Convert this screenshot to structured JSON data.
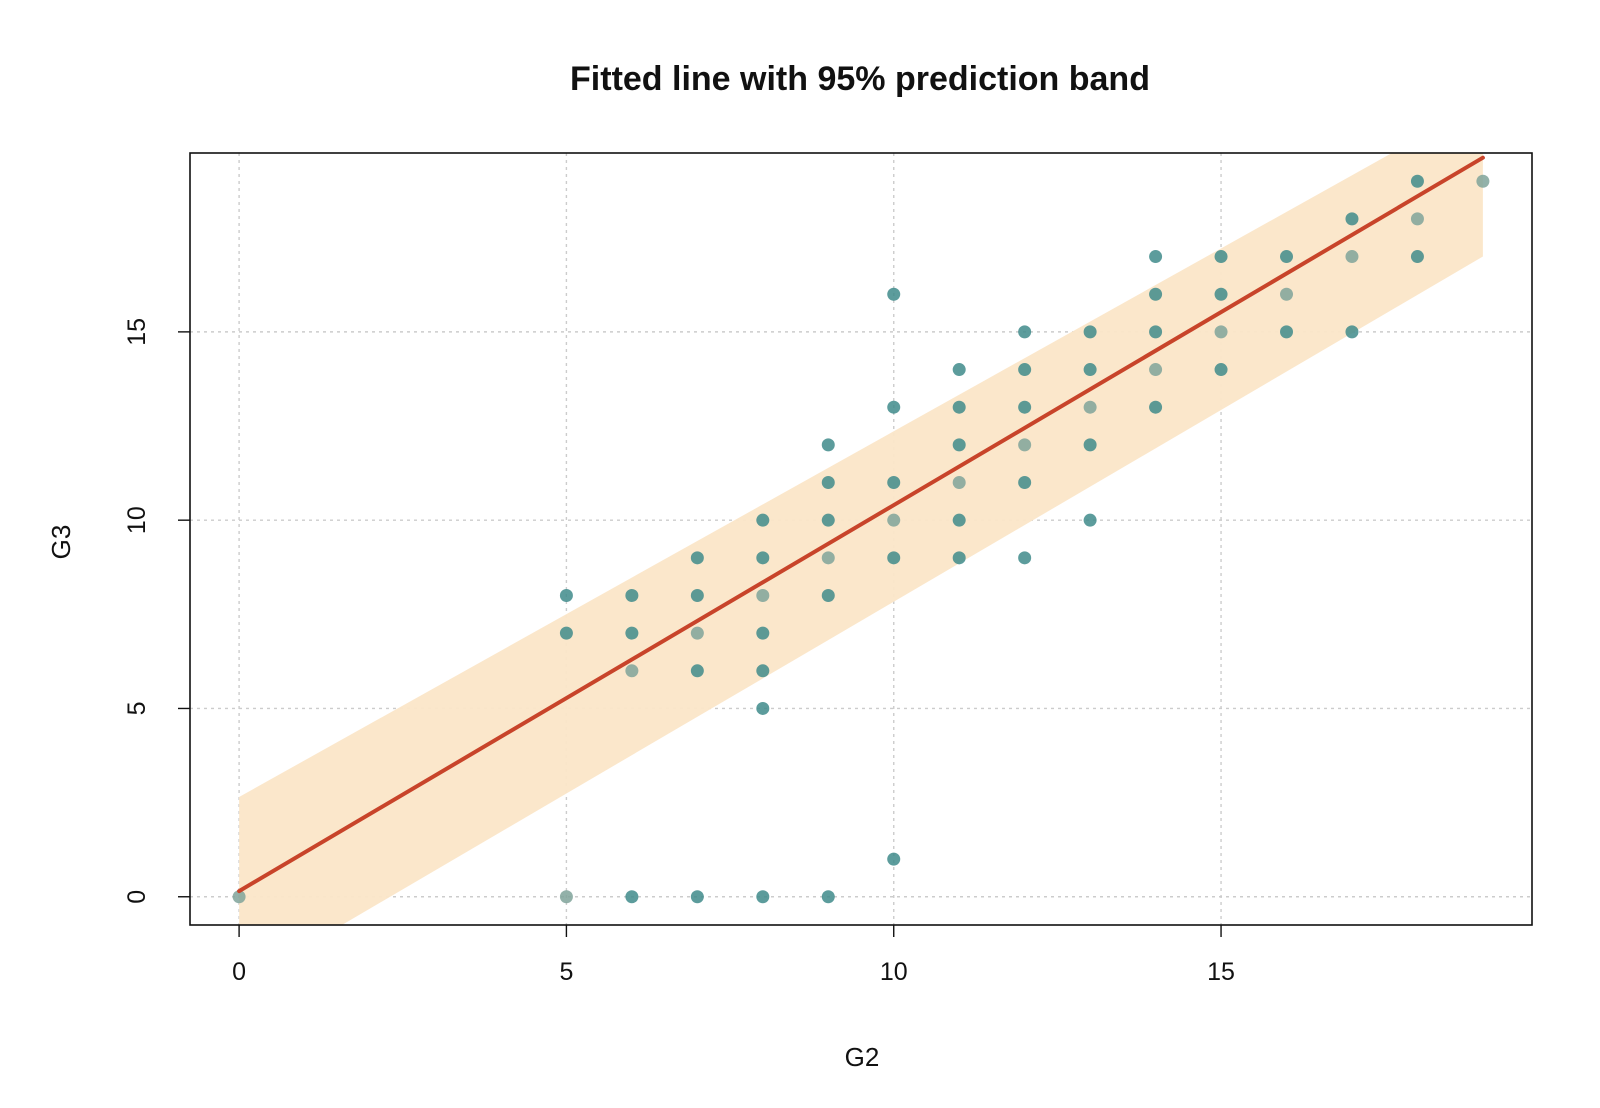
{
  "chart_data": {
    "type": "scatter",
    "title": "Fitted line with 95% prediction band",
    "xlabel": "G2",
    "ylabel": "G3",
    "xlim": [
      -0.75,
      19.75
    ],
    "ylim": [
      -0.75,
      19.75
    ],
    "x_ticks": [
      0,
      5,
      10,
      15
    ],
    "y_ticks": [
      0,
      5,
      10,
      15
    ],
    "grid": true,
    "colors": {
      "points": "#3f8b8b",
      "points_alt": "#7fa39a",
      "fit_line": "#c8442a",
      "band": "#fbe6c8",
      "grid": "#cccccc"
    },
    "fit": {
      "slope": 1.025,
      "intercept": 0.15,
      "x_range": [
        0,
        19
      ]
    },
    "prediction_band": {
      "x": [
        0,
        19
      ],
      "upper": [
        2.65,
        21.1
      ],
      "lower": [
        -2.35,
        17.0
      ]
    },
    "series": [
      {
        "points": [
          [
            0,
            0
          ],
          [
            5,
            0
          ],
          [
            6,
            0
          ],
          [
            7,
            0
          ],
          [
            8,
            0
          ],
          [
            9,
            0
          ],
          [
            10,
            1
          ],
          [
            5,
            7
          ],
          [
            5,
            8
          ],
          [
            6,
            6
          ],
          [
            6,
            7
          ],
          [
            6,
            8
          ],
          [
            7,
            6
          ],
          [
            7,
            7
          ],
          [
            7,
            8
          ],
          [
            7,
            9
          ],
          [
            8,
            5
          ],
          [
            8,
            6
          ],
          [
            8,
            7
          ],
          [
            8,
            8
          ],
          [
            8,
            9
          ],
          [
            8,
            10
          ],
          [
            9,
            8
          ],
          [
            9,
            9
          ],
          [
            9,
            10
          ],
          [
            9,
            11
          ],
          [
            9,
            12
          ],
          [
            10,
            9
          ],
          [
            10,
            10
          ],
          [
            10,
            11
          ],
          [
            10,
            13
          ],
          [
            10,
            16
          ],
          [
            11,
            9
          ],
          [
            11,
            10
          ],
          [
            11,
            11
          ],
          [
            11,
            12
          ],
          [
            11,
            13
          ],
          [
            11,
            14
          ],
          [
            12,
            9
          ],
          [
            12,
            11
          ],
          [
            12,
            12
          ],
          [
            12,
            13
          ],
          [
            12,
            14
          ],
          [
            12,
            15
          ],
          [
            13,
            10
          ],
          [
            13,
            12
          ],
          [
            13,
            13
          ],
          [
            13,
            14
          ],
          [
            13,
            15
          ],
          [
            14,
            13
          ],
          [
            14,
            14
          ],
          [
            14,
            15
          ],
          [
            14,
            16
          ],
          [
            14,
            17
          ],
          [
            15,
            14
          ],
          [
            15,
            15
          ],
          [
            15,
            16
          ],
          [
            15,
            17
          ],
          [
            16,
            15
          ],
          [
            16,
            16
          ],
          [
            16,
            17
          ],
          [
            17,
            15
          ],
          [
            17,
            17
          ],
          [
            17,
            18
          ],
          [
            18,
            17
          ],
          [
            18,
            18
          ],
          [
            18,
            19
          ],
          [
            19,
            19
          ]
        ]
      }
    ]
  }
}
